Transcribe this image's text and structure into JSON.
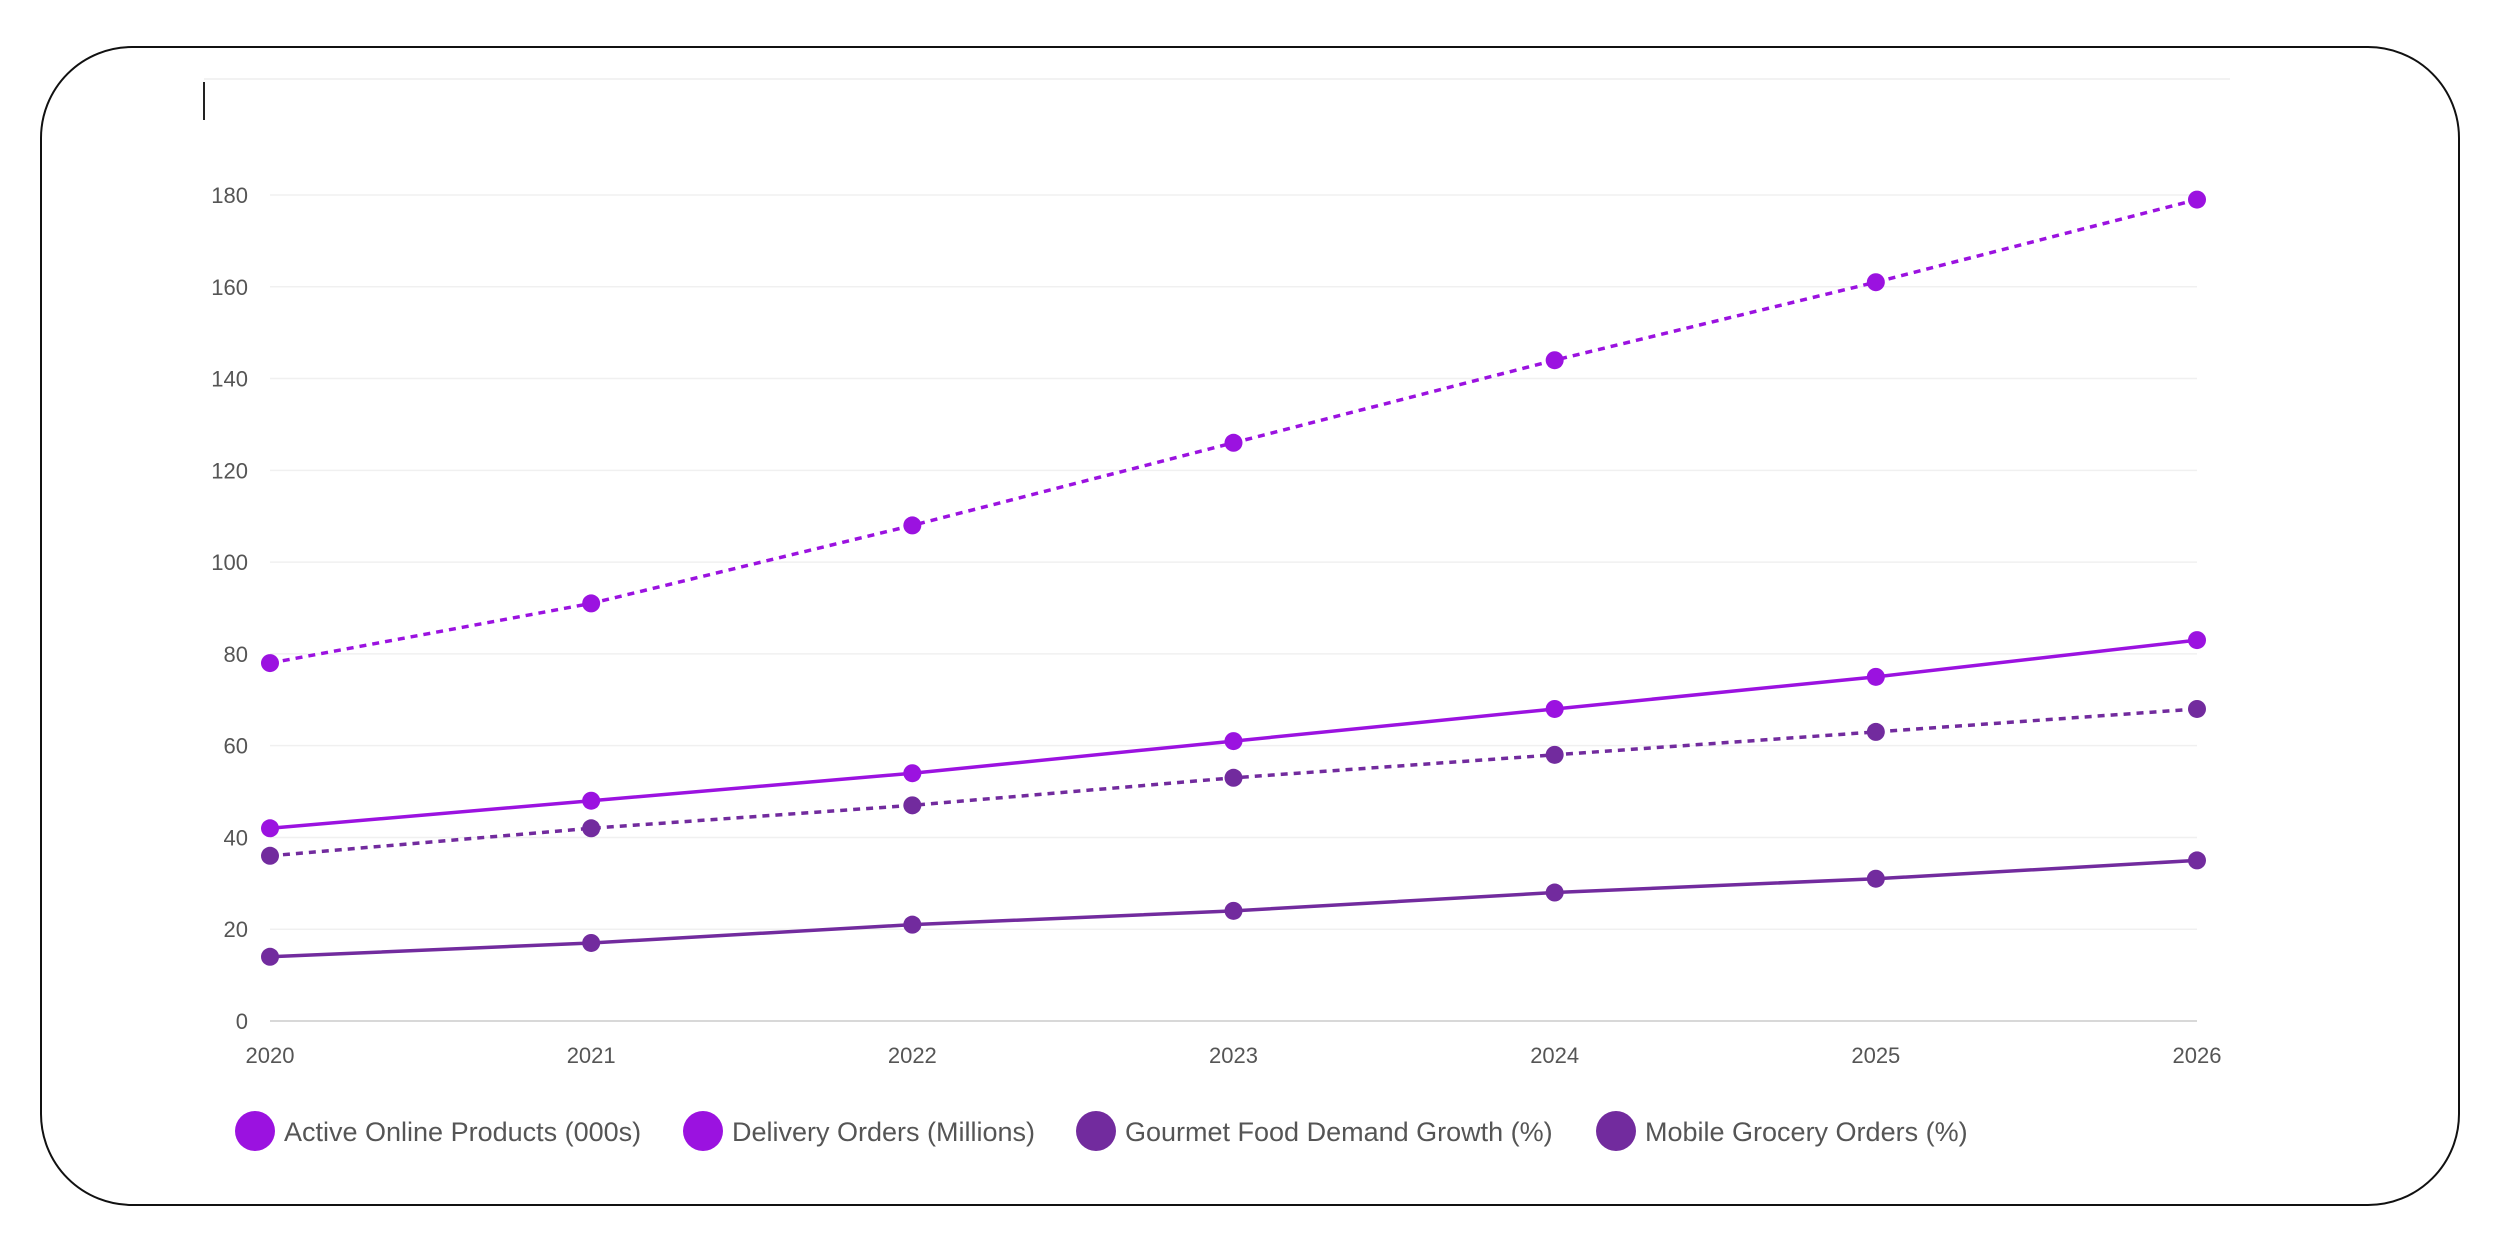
{
  "chart_data": {
    "type": "line",
    "title": "",
    "xlabel": "",
    "ylabel": "",
    "categories": [
      "2020",
      "2021",
      "2022",
      "2023",
      "2024",
      "2025",
      "2026"
    ],
    "yticks": [
      "0",
      "20",
      "40",
      "60",
      "80",
      "100",
      "120",
      "140",
      "160",
      "180"
    ],
    "ylim": [
      0,
      200
    ],
    "grid": true,
    "legend_position": "bottom",
    "series": [
      {
        "name": "Active Online Products (000s)",
        "values": [
          78,
          91,
          108,
          126,
          144,
          161,
          179
        ],
        "color": "#9b12e0",
        "dash": "dotted"
      },
      {
        "name": "Delivery Orders (Millions)",
        "values": [
          42,
          48,
          54,
          61,
          68,
          75,
          83
        ],
        "color": "#9b12e0",
        "dash": "solid"
      },
      {
        "name": "Gourmet Food Demand Growth (%)",
        "values": [
          36,
          42,
          47,
          53,
          58,
          63,
          68
        ],
        "color": "#722b9e",
        "dash": "dotted"
      },
      {
        "name": "Mobile Grocery Orders (%)",
        "values": [
          14,
          17,
          21,
          24,
          28,
          31,
          35
        ],
        "color": "#722b9e",
        "dash": "solid"
      }
    ]
  }
}
